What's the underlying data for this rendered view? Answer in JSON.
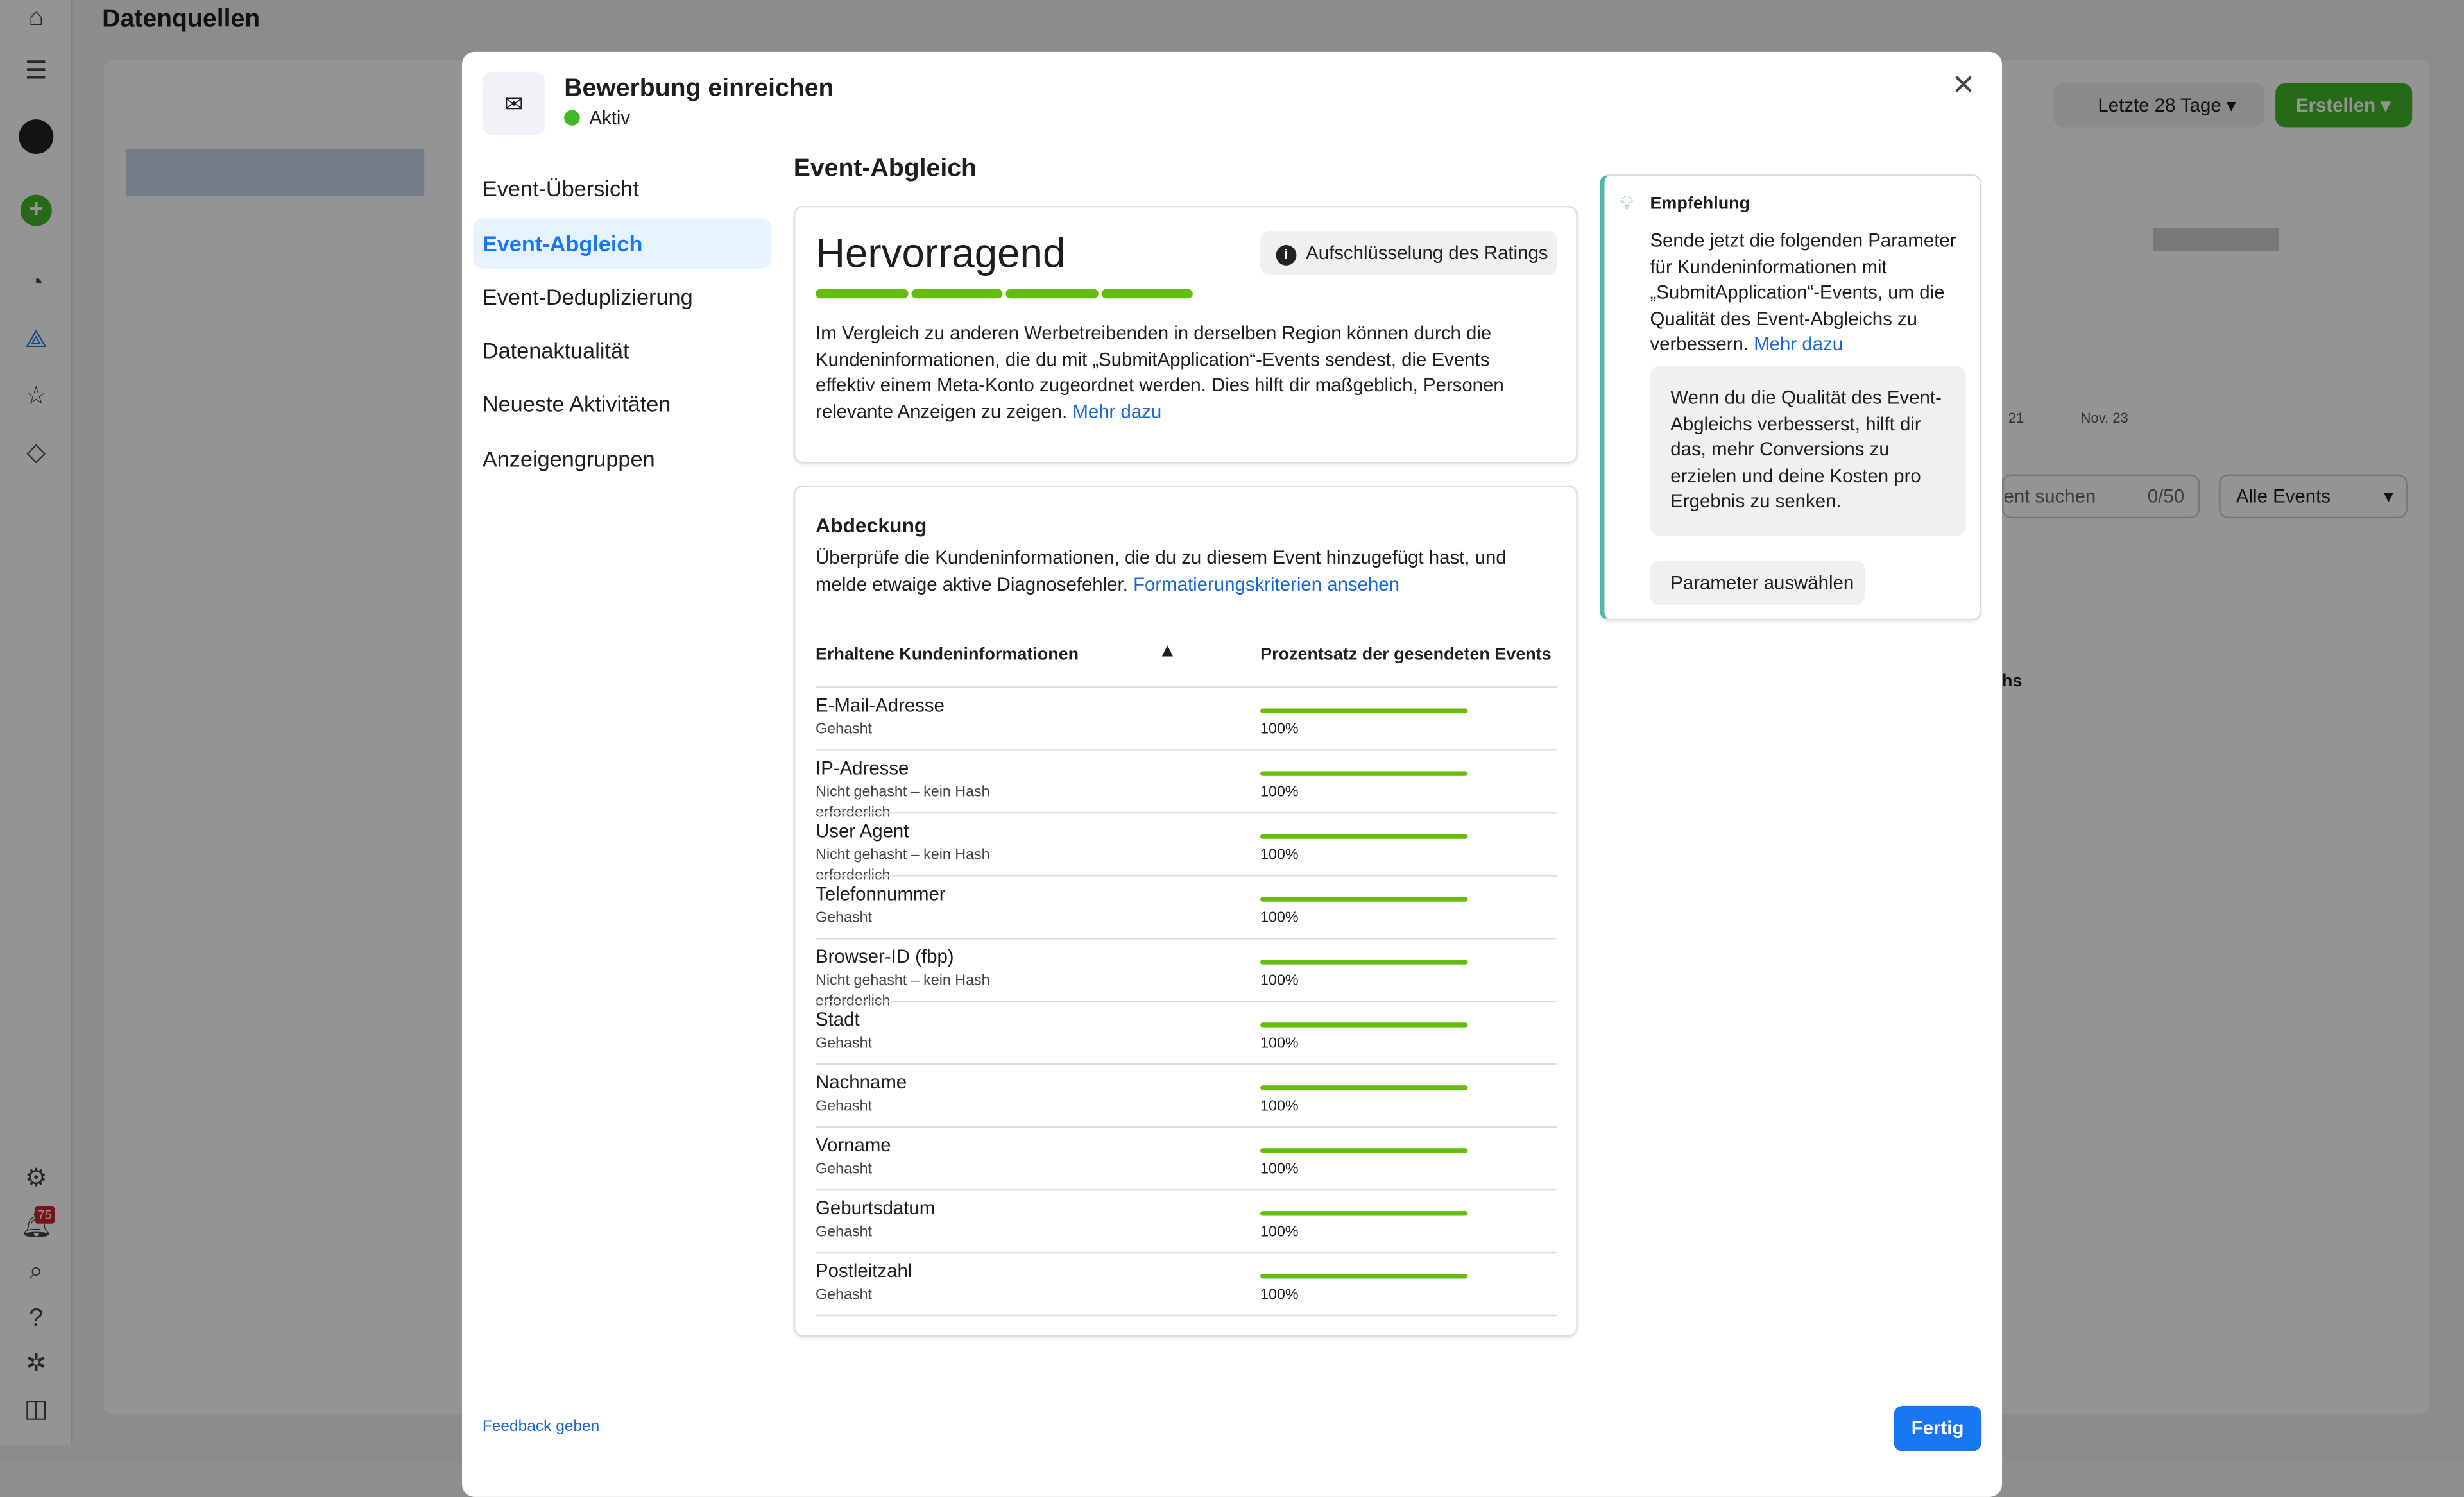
{
  "background": {
    "page_title": "Datenquellen",
    "date_range": "Letzte 28 Tage",
    "create_button": "Erstellen",
    "search_placeholder": "ent suchen",
    "search_counter": "0/50",
    "event_filter": "Alle Events",
    "chart_tick_1": "21",
    "chart_tick_2": "Nov. 23",
    "column_fragment": "hs",
    "notification_count": "75",
    "accent_green": "#42b72a"
  },
  "modal": {
    "icon": "envelope-send-icon",
    "title": "Bewerbung einreichen",
    "status": "Aktiv",
    "status_color": "#42b72a",
    "nav": [
      {
        "label": "Event-Übersicht",
        "active": false
      },
      {
        "label": "Event-Abgleich",
        "active": true
      },
      {
        "label": "Event-Deduplizierung",
        "active": false
      },
      {
        "label": "Datenaktualität",
        "active": false
      },
      {
        "label": "Neueste Aktivitäten",
        "active": false
      },
      {
        "label": "Anzeigengruppen",
        "active": false
      }
    ],
    "section_title": "Event-Abgleich",
    "rating": {
      "label": "Hervorragend",
      "segments_filled": 4,
      "segments_total": 4,
      "breakdown_button": "Aufschlüsselung des Ratings",
      "description": "Im Vergleich zu anderen Werbetreibenden in derselben Region können durch die Kundeninformationen, die du mit „SubmitApplication“-Events sendest, die Events effektiv einem Meta-Konto zugeordnet werden. Dies hilft dir maßgeblich, Personen relevante Anzeigen zu zeigen.",
      "more_link": "Mehr dazu"
    },
    "coverage": {
      "title": "Abdeckung",
      "description": "Überprüfe die Kundeninformationen, die du zu diesem Event hinzugefügt hast, und melde etwaige aktive Diagnosefehler.",
      "criteria_link": "Formatierungskriterien ansehen",
      "col_info": "Erhaltene Kundeninformationen",
      "col_percent": "Prozentsatz der gesendeten Events",
      "rows": [
        {
          "name": "E-Mail-Adresse",
          "status": "Gehasht",
          "percent": 100,
          "percent_label": "100%"
        },
        {
          "name": "IP-Adresse",
          "status": "Nicht gehasht – kein Hash erforderlich",
          "percent": 100,
          "percent_label": "100%"
        },
        {
          "name": "User Agent",
          "status": "Nicht gehasht – kein Hash erforderlich",
          "percent": 100,
          "percent_label": "100%"
        },
        {
          "name": "Telefonnummer",
          "status": "Gehasht",
          "percent": 100,
          "percent_label": "100%"
        },
        {
          "name": "Browser-ID (fbp)",
          "status": "Nicht gehasht – kein Hash erforderlich",
          "percent": 100,
          "percent_label": "100%"
        },
        {
          "name": "Stadt",
          "status": "Gehasht",
          "percent": 100,
          "percent_label": "100%"
        },
        {
          "name": "Nachname",
          "status": "Gehasht",
          "percent": 100,
          "percent_label": "100%"
        },
        {
          "name": "Vorname",
          "status": "Gehasht",
          "percent": 100,
          "percent_label": "100%"
        },
        {
          "name": "Geburtsdatum",
          "status": "Gehasht",
          "percent": 100,
          "percent_label": "100%"
        },
        {
          "name": "Postleitzahl",
          "status": "Gehasht",
          "percent": 100,
          "percent_label": "100%"
        }
      ]
    },
    "recommendation": {
      "title": "Empfehlung",
      "text": "Sende jetzt die folgenden Parameter für Kundeninformationen mit „SubmitApplication“-Events, um die Qualität des Event-Abgleichs zu verbessern.",
      "more_link": "Mehr dazu",
      "note": "Wenn du die Qualität des Event-Abgleichs verbesserst, hilft dir das, mehr Conversions zu erzielen und deine Kosten pro Ergebnis zu senken.",
      "button": "Parameter auswählen",
      "accent": "#4cb8a5"
    },
    "feedback_link": "Feedback geben",
    "done_button": "Fertig",
    "primary_color": "#1877f2",
    "bar_color": "#63be09"
  }
}
